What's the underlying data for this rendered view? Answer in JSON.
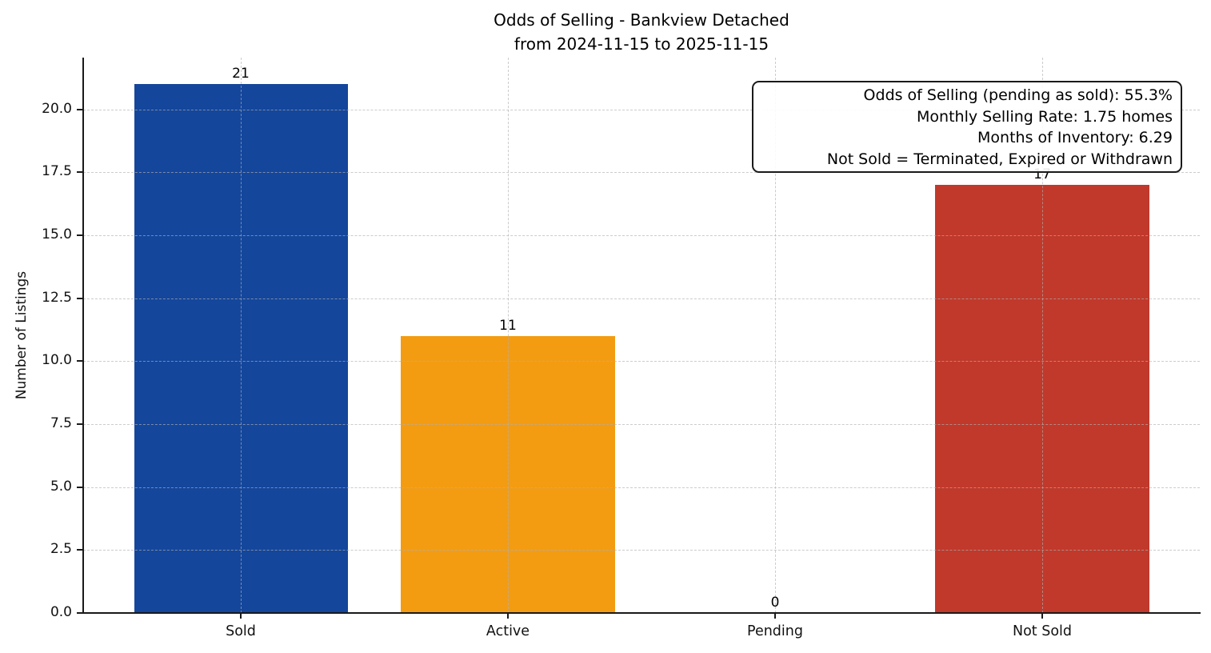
{
  "chart_data": {
    "type": "bar",
    "title": "Odds of Selling - Bankview Detached",
    "subtitle": "from 2024-11-15 to 2025-11-15",
    "ylabel": "Number of Listings",
    "xlabel": "",
    "categories": [
      "Sold",
      "Active",
      "Pending",
      "Not Sold"
    ],
    "values": [
      21,
      11,
      0,
      17
    ],
    "value_labels": [
      "21",
      "11",
      "0",
      "17"
    ],
    "bar_colors": [
      "#14469b",
      "#f39c12",
      null,
      "#c0392b"
    ],
    "ylim": [
      0,
      22.05
    ],
    "ytick_values": [
      0,
      2.5,
      5,
      7.5,
      10,
      12.5,
      15,
      17.5,
      20
    ],
    "ytick_labels": [
      "0.0",
      "2.5",
      "5.0",
      "7.5",
      "10.0",
      "12.5",
      "15.0",
      "17.5",
      "20.0"
    ],
    "grid": {
      "style": "dashed",
      "color": "#b0b0b0",
      "axisbelow": false,
      "horizontal": true,
      "vertical": true
    },
    "legend": null,
    "annotation_box": {
      "lines": [
        "Odds of Selling (pending as sold): 55.3%",
        "Monthly Selling Rate: 1.75 homes",
        "Months of Inventory: 6.29",
        "Not Sold = Terminated, Expired or Withdrawn"
      ]
    }
  }
}
